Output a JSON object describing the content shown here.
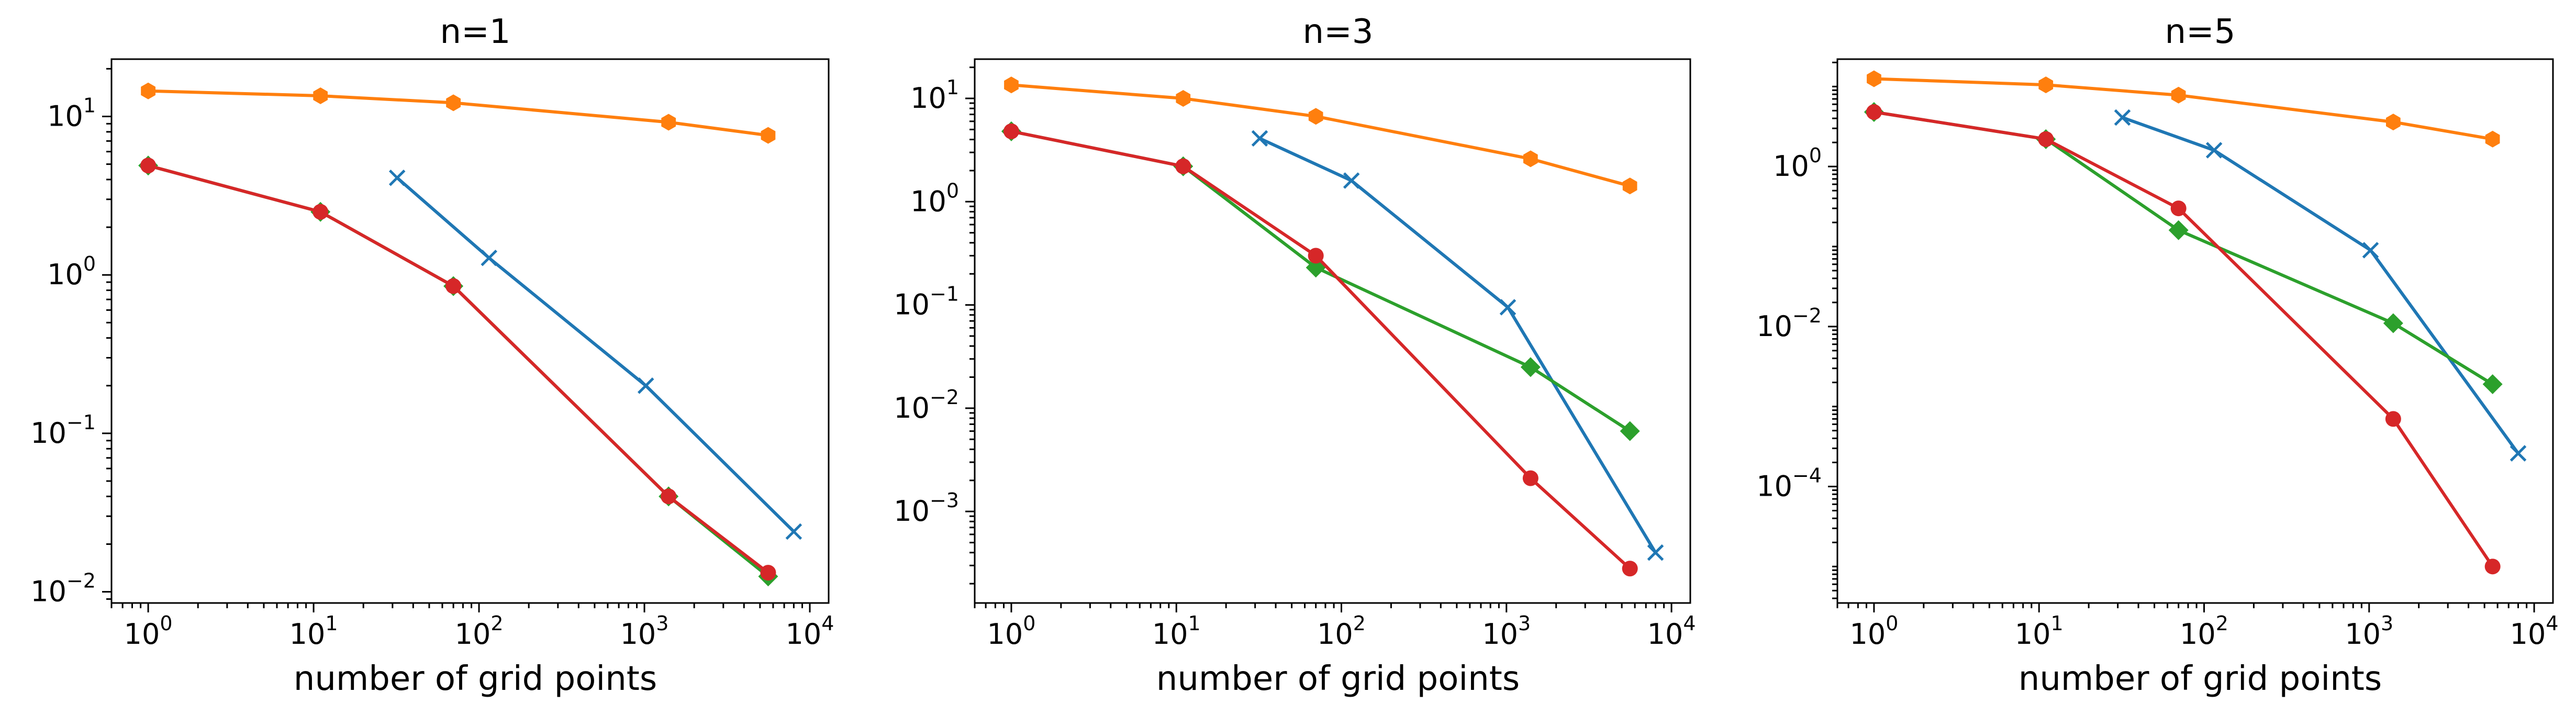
{
  "chart_data": [
    {
      "type": "line",
      "title": "n=1",
      "xlabel": "number of grid points",
      "ylabel": "",
      "xscale": "log",
      "yscale": "log",
      "xlim": [
        0.6,
        13000
      ],
      "ylim": [
        0.0085,
        23
      ],
      "xticks": [
        {
          "value": 1,
          "base": "10",
          "exp": "0"
        },
        {
          "value": 10,
          "base": "10",
          "exp": "1"
        },
        {
          "value": 100,
          "base": "10",
          "exp": "2"
        },
        {
          "value": 1000,
          "base": "10",
          "exp": "3"
        },
        {
          "value": 10000,
          "base": "10",
          "exp": "4"
        }
      ],
      "yticks": [
        {
          "value": 0.01,
          "base": "10",
          "exp": "−2"
        },
        {
          "value": 0.1,
          "base": "10",
          "exp": "−1"
        },
        {
          "value": 1,
          "base": "10",
          "exp": "0"
        },
        {
          "value": 10,
          "base": "10",
          "exp": "1"
        }
      ],
      "grid": false,
      "series": [
        {
          "color": "#ff7f0e",
          "marker": "hexagon",
          "x": [
            1,
            11,
            70,
            1400,
            5600
          ],
          "y": [
            14.5,
            13.5,
            12.2,
            9.2,
            7.6
          ]
        },
        {
          "color": "#1f77b4",
          "marker": "x",
          "x": [
            32,
            115,
            1020,
            8000
          ],
          "y": [
            4.1,
            1.28,
            0.2,
            0.024
          ]
        },
        {
          "color": "#2ca02c",
          "marker": "diamond",
          "x": [
            1,
            11,
            70,
            1400,
            5600
          ],
          "y": [
            4.9,
            2.5,
            0.85,
            0.04,
            0.0125
          ]
        },
        {
          "color": "#d62728",
          "marker": "circle",
          "x": [
            1,
            11,
            70,
            1400,
            5600
          ],
          "y": [
            4.9,
            2.5,
            0.85,
            0.04,
            0.0132
          ]
        }
      ]
    },
    {
      "type": "line",
      "title": "n=3",
      "xlabel": "number of grid points",
      "ylabel": "",
      "xscale": "log",
      "yscale": "log",
      "xlim": [
        0.6,
        13000
      ],
      "ylim": [
        0.00013,
        24
      ],
      "xticks": [
        {
          "value": 1,
          "base": "10",
          "exp": "0"
        },
        {
          "value": 10,
          "base": "10",
          "exp": "1"
        },
        {
          "value": 100,
          "base": "10",
          "exp": "2"
        },
        {
          "value": 1000,
          "base": "10",
          "exp": "3"
        },
        {
          "value": 10000,
          "base": "10",
          "exp": "4"
        }
      ],
      "yticks": [
        {
          "value": 0.001,
          "base": "10",
          "exp": "−3"
        },
        {
          "value": 0.01,
          "base": "10",
          "exp": "−2"
        },
        {
          "value": 0.1,
          "base": "10",
          "exp": "−1"
        },
        {
          "value": 1,
          "base": "10",
          "exp": "0"
        },
        {
          "value": 10,
          "base": "10",
          "exp": "1"
        }
      ],
      "grid": false,
      "series": [
        {
          "color": "#ff7f0e",
          "marker": "hexagon",
          "x": [
            1,
            11,
            70,
            1400,
            5600
          ],
          "y": [
            13.5,
            10,
            6.7,
            2.6,
            1.42
          ]
        },
        {
          "color": "#1f77b4",
          "marker": "x",
          "x": [
            32,
            115,
            1020,
            8000
          ],
          "y": [
            4.1,
            1.6,
            0.095,
            0.0004
          ]
        },
        {
          "color": "#2ca02c",
          "marker": "diamond",
          "x": [
            1,
            11,
            70,
            1400,
            5600
          ],
          "y": [
            4.8,
            2.2,
            0.23,
            0.025,
            0.006
          ]
        },
        {
          "color": "#d62728",
          "marker": "circle",
          "x": [
            1,
            11,
            70,
            1400,
            5600
          ],
          "y": [
            4.8,
            2.2,
            0.3,
            0.0021,
            0.00028
          ]
        }
      ]
    },
    {
      "type": "line",
      "title": "n=5",
      "xlabel": "number of grid points",
      "ylabel": "",
      "xscale": "log",
      "yscale": "log",
      "xlim": [
        0.6,
        13000
      ],
      "ylim": [
        3.5e-06,
        22
      ],
      "xticks": [
        {
          "value": 1,
          "base": "10",
          "exp": "0"
        },
        {
          "value": 10,
          "base": "10",
          "exp": "1"
        },
        {
          "value": 100,
          "base": "10",
          "exp": "2"
        },
        {
          "value": 1000,
          "base": "10",
          "exp": "3"
        },
        {
          "value": 10000,
          "base": "10",
          "exp": "4"
        }
      ],
      "yticks": [
        {
          "value": 0.0001,
          "base": "10",
          "exp": "−4"
        },
        {
          "value": 0.01,
          "base": "10",
          "exp": "−2"
        },
        {
          "value": 1,
          "base": "10",
          "exp": "0"
        }
      ],
      "grid": false,
      "series": [
        {
          "color": "#ff7f0e",
          "marker": "hexagon",
          "x": [
            1,
            11,
            70,
            1400,
            5600
          ],
          "y": [
            12.5,
            10.5,
            7.8,
            3.6,
            2.2
          ]
        },
        {
          "color": "#1f77b4",
          "marker": "x",
          "x": [
            32,
            115,
            1020,
            8000
          ],
          "y": [
            4.1,
            1.6,
            0.09,
            0.00026
          ]
        },
        {
          "color": "#2ca02c",
          "marker": "diamond",
          "x": [
            1,
            11,
            70,
            1400,
            5600
          ],
          "y": [
            4.8,
            2.2,
            0.16,
            0.011,
            0.0019
          ]
        },
        {
          "color": "#d62728",
          "marker": "circle",
          "x": [
            1,
            11,
            70,
            1400,
            5600
          ],
          "y": [
            4.8,
            2.2,
            0.3,
            0.0007,
            1e-05
          ]
        }
      ]
    }
  ]
}
